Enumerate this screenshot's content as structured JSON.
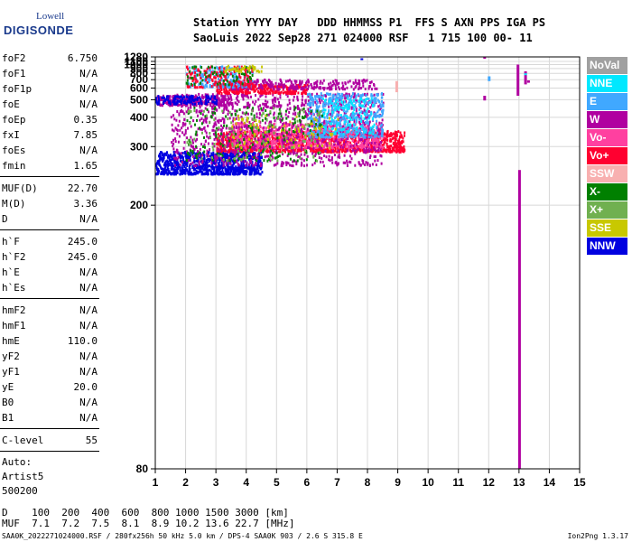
{
  "logo": {
    "line1": "Lowell",
    "line2": "DIGISONDE"
  },
  "header": {
    "line1": "Station YYYY DAY   DDD HHMMSS P1  FFS S AXN PPS IGA PS",
    "line2": "SaoLuis 2022 Sep28 271 024000 RSF   1 715 100 00- 11"
  },
  "params_groups": [
    [
      {
        "label": "foF2",
        "value": "6.750"
      },
      {
        "label": "foF1",
        "value": "N/A"
      },
      {
        "label": "foF1p",
        "value": "N/A"
      },
      {
        "label": "foE",
        "value": "N/A"
      },
      {
        "label": "foEp",
        "value": "0.35"
      },
      {
        "label": "fxI",
        "value": "7.85"
      },
      {
        "label": "foEs",
        "value": "N/A"
      },
      {
        "label": "fmin",
        "value": "1.65"
      }
    ],
    [
      {
        "label": "MUF(D)",
        "value": "22.70"
      },
      {
        "label": "M(D)",
        "value": "3.36"
      },
      {
        "label": "D",
        "value": "N/A"
      }
    ],
    [
      {
        "label": "h`F",
        "value": "245.0"
      },
      {
        "label": "h`F2",
        "value": "245.0"
      },
      {
        "label": "h`E",
        "value": "N/A"
      },
      {
        "label": "h`Es",
        "value": "N/A"
      }
    ],
    [
      {
        "label": "hmF2",
        "value": "N/A"
      },
      {
        "label": "hmF1",
        "value": "N/A"
      },
      {
        "label": "hmE",
        "value": "110.0"
      },
      {
        "label": "yF2",
        "value": "N/A"
      },
      {
        "label": "yF1",
        "value": "N/A"
      },
      {
        "label": "yE",
        "value": "20.0"
      },
      {
        "label": "B0",
        "value": "N/A"
      },
      {
        "label": "B1",
        "value": "N/A"
      }
    ],
    [
      {
        "label": "C-level",
        "value": "55"
      }
    ]
  ],
  "auto": [
    "Auto:",
    "Artist5",
    "500200"
  ],
  "legend": [
    {
      "label": "NoVal",
      "color": "#a0a0a0"
    },
    {
      "label": "NNE",
      "color": "#00e8ff"
    },
    {
      "label": "E",
      "color": "#40a8ff"
    },
    {
      "label": "W",
      "color": "#b000a0"
    },
    {
      "label": "Vo-",
      "color": "#ff40a0"
    },
    {
      "label": "Vo+",
      "color": "#ff0030"
    },
    {
      "label": "SSW",
      "color": "#f8b0b0"
    },
    {
      "label": "X-",
      "color": "#008000"
    },
    {
      "label": "X+",
      "color": "#70b050"
    },
    {
      "label": "SSE",
      "color": "#c8c800"
    },
    {
      "label": "NNW",
      "color": "#0000e0"
    }
  ],
  "footer": {
    "table_line1": "D    100  200  400  600  800 1000 1500 3000 [km]",
    "table_line2": "MUF  7.1  7.2  7.5  8.1  8.9 10.2 13.6 22.7 [MHz]",
    "info": "SAA0K_2022271024000.RSF / 280fx256h 50 kHz 5.0 km / DPS-4 SAA0K 903 / 2.6 S 315.8 E",
    "version": "Ion2Png 1.3.17"
  },
  "chart_data": {
    "type": "scatter",
    "x_ticks": [
      "1",
      "2",
      "3",
      "4",
      "5",
      "6",
      "7",
      "8",
      "9",
      "10",
      "11",
      "12",
      "13",
      "14",
      "15"
    ],
    "y_ticks": [
      "80",
      "200",
      "300",
      "400",
      "500",
      "600",
      "700",
      "800",
      "900",
      "1000",
      "1100",
      "1280"
    ],
    "xlim": [
      1,
      15
    ],
    "ylim": [
      80,
      1280
    ],
    "y_scale": "reciprocal",
    "grid": true,
    "legend_position": "right",
    "clusters": [
      {
        "color_index": 10,
        "x": [
          1.0,
          4.5
        ],
        "y": [
          245,
          290
        ],
        "n": 900
      },
      {
        "color_index": 5,
        "x": [
          3.0,
          9.2
        ],
        "y": [
          290,
          350
        ],
        "n": 1200
      },
      {
        "color_index": 4,
        "x": [
          3.5,
          8.5
        ],
        "y": [
          300,
          380
        ],
        "n": 700
      },
      {
        "color_index": 3,
        "x": [
          1.5,
          8.5
        ],
        "y": [
          260,
          560
        ],
        "n": 1100
      },
      {
        "color_index": 2,
        "x": [
          6.0,
          8.5
        ],
        "y": [
          330,
          560
        ],
        "n": 450
      },
      {
        "color_index": 1,
        "x": [
          6.5,
          8.2
        ],
        "y": [
          340,
          520
        ],
        "n": 120
      },
      {
        "color_index": 7,
        "x": [
          2.0,
          6.5
        ],
        "y": [
          270,
          460
        ],
        "n": 180
      },
      {
        "color_index": 8,
        "x": [
          2.0,
          6.5
        ],
        "y": [
          270,
          460
        ],
        "n": 120
      },
      {
        "color_index": 9,
        "x": [
          3.5,
          7.0
        ],
        "y": [
          300,
          420
        ],
        "n": 80
      },
      {
        "color_index": 3,
        "x": [
          1.0,
          3.5
        ],
        "y": [
          470,
          540
        ],
        "n": 250
      },
      {
        "color_index": 10,
        "x": [
          1.0,
          3.0
        ],
        "y": [
          480,
          540
        ],
        "n": 120
      },
      {
        "color_index": 5,
        "x": [
          3.0,
          6.0
        ],
        "y": [
          560,
          650
        ],
        "n": 300
      },
      {
        "color_index": 3,
        "x": [
          3.5,
          8.3
        ],
        "y": [
          600,
          720
        ],
        "n": 250
      },
      {
        "color_index": 2,
        "x": [
          2.0,
          4.2
        ],
        "y": [
          620,
          980
        ],
        "n": 200
      },
      {
        "color_index": 5,
        "x": [
          2.0,
          4.2
        ],
        "y": [
          620,
          980
        ],
        "n": 150
      },
      {
        "color_index": 7,
        "x": [
          2.0,
          4.2
        ],
        "y": [
          650,
          980
        ],
        "n": 60
      },
      {
        "color_index": 9,
        "x": [
          3.2,
          4.5
        ],
        "y": [
          850,
          1000
        ],
        "n": 40
      }
    ],
    "traces": [
      {
        "color_index": 3,
        "x": 11.85,
        "y": [
          1240,
          1280
        ]
      },
      {
        "color_index": 3,
        "x": 11.85,
        "y": [
          495,
          530
        ]
      },
      {
        "color_index": 3,
        "x": 13.0,
        "y": [
          80,
          250
        ]
      },
      {
        "color_index": 3,
        "x": 12.95,
        "y": [
          530,
          1000
        ]
      },
      {
        "color_index": 3,
        "x": 13.2,
        "y": [
          640,
          840
        ]
      },
      {
        "color_index": 3,
        "x": 13.3,
        "y": [
          660,
          690
        ]
      },
      {
        "color_index": 6,
        "x": 8.95,
        "y": [
          560,
          680
        ]
      },
      {
        "color_index": 10,
        "x": 7.8,
        "y": [
          1160,
          1220
        ]
      },
      {
        "color_index": 2,
        "x": 12.0,
        "y": [
          680,
          750
        ]
      },
      {
        "color_index": 1,
        "x": 13.2,
        "y": [
          780,
          800
        ]
      }
    ]
  }
}
